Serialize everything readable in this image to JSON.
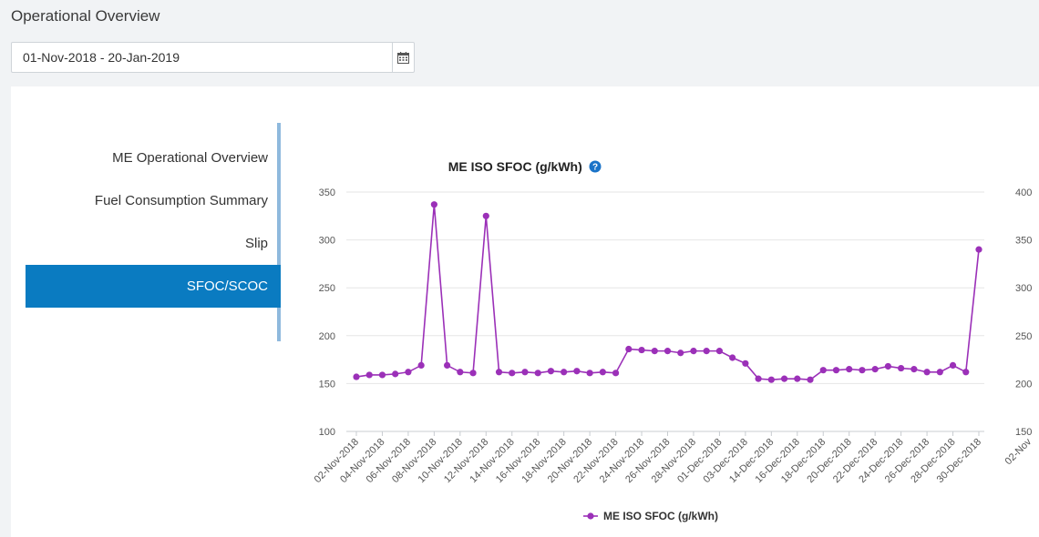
{
  "header": {
    "title": "Operational Overview"
  },
  "date_range": {
    "value": "01-Nov-2018 - 20-Jan-2019",
    "icon": "calendar-icon"
  },
  "side_nav": {
    "items": [
      {
        "label": "ME Operational Overview",
        "active": false
      },
      {
        "label": "Fuel Consumption Summary",
        "active": false
      },
      {
        "label": "Slip",
        "active": false
      },
      {
        "label": "SFOC/SCOC",
        "active": true
      }
    ]
  },
  "colors": {
    "accent": "#0a7bc1",
    "series": "#9b30b8",
    "help": "#1a73c8"
  },
  "chart_data": {
    "type": "line",
    "title": "ME ISO SFOC (g/kWh)",
    "help_icon": "question-circle-icon",
    "ylim": [
      100,
      350
    ],
    "yticks": [
      100,
      150,
      200,
      250,
      300,
      350
    ],
    "right_ticks_partial": [
      "400",
      "350",
      "300",
      "250",
      "200",
      "150"
    ],
    "right_x_partial": "02-Nov",
    "grid": true,
    "legend_position": "bottom",
    "x_tick_labels": [
      "02-Nov-2018",
      "04-Nov-2018",
      "06-Nov-2018",
      "08-Nov-2018",
      "10-Nov-2018",
      "12-Nov-2018",
      "14-Nov-2018",
      "16-Nov-2018",
      "18-Nov-2018",
      "20-Nov-2018",
      "22-Nov-2018",
      "24-Nov-2018",
      "26-Nov-2018",
      "28-Nov-2018",
      "01-Dec-2018",
      "03-Dec-2018",
      "14-Dec-2018",
      "16-Dec-2018",
      "18-Dec-2018",
      "20-Dec-2018",
      "22-Dec-2018",
      "24-Dec-2018",
      "26-Dec-2018",
      "28-Dec-2018",
      "30-Dec-2018"
    ],
    "series": [
      {
        "name": "ME ISO SFOC (g/kWh)",
        "values": [
          157,
          159,
          159,
          160,
          162,
          169,
          337,
          169,
          162,
          161,
          325,
          162,
          161,
          162,
          161,
          163,
          162,
          163,
          161,
          162,
          161,
          186,
          185,
          184,
          184,
          182,
          184,
          184,
          184,
          177,
          171,
          155,
          154,
          155,
          155,
          154,
          164,
          164,
          165,
          164,
          165,
          168,
          166,
          165,
          162,
          162,
          169,
          162,
          290
        ]
      }
    ]
  }
}
